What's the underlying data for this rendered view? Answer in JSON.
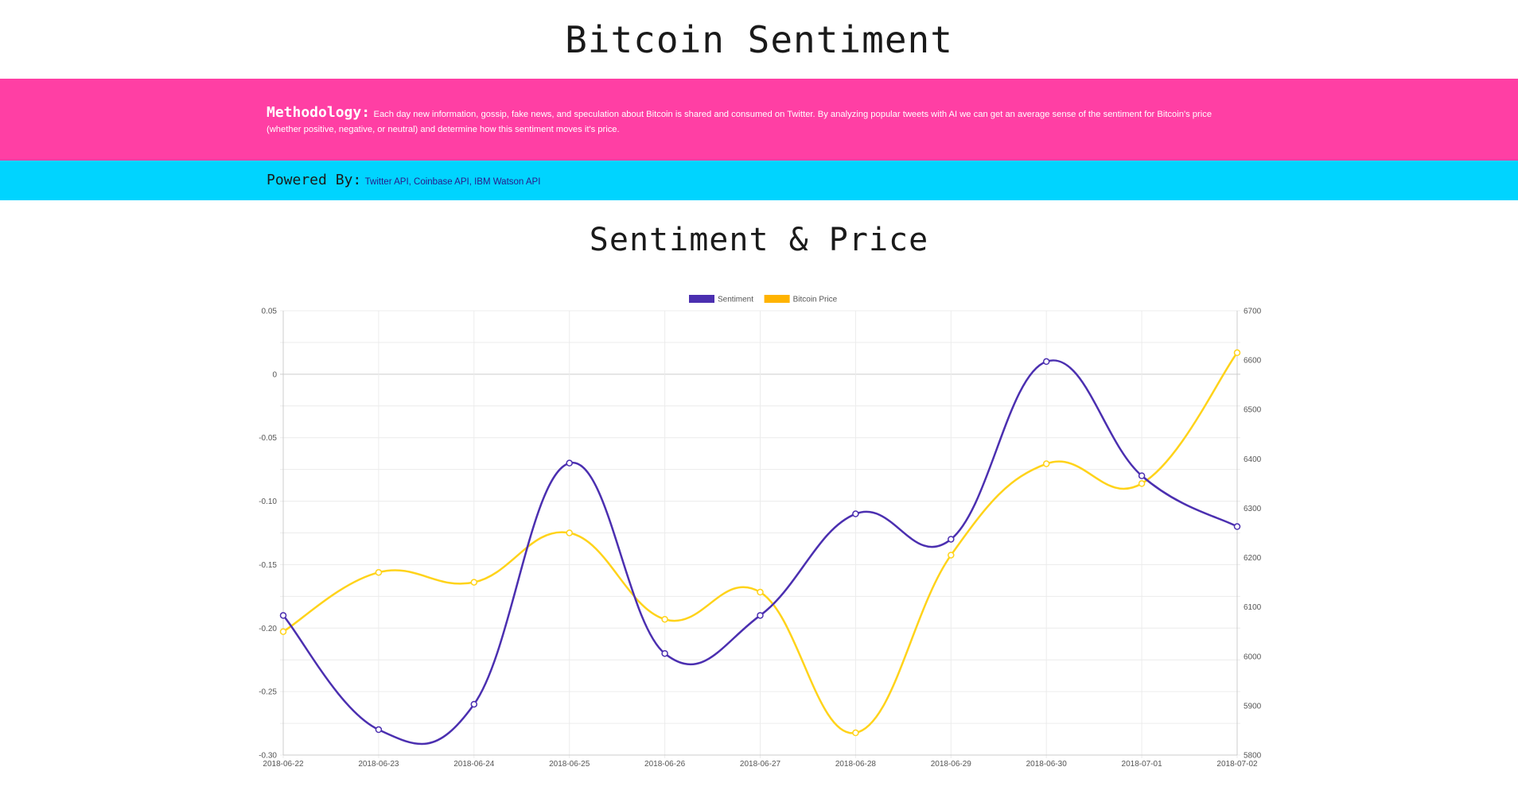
{
  "page": {
    "title": "Bitcoin Sentiment"
  },
  "methodology": {
    "label": "Methodology:",
    "text": "Each day new information, gossip, fake news, and speculation about Bitcoin is shared and consumed on Twitter. By analyzing popular tweets with AI we can get an average sense of the sentiment for Bitcoin's price (whether positive, negative, or neutral) and determine how this sentiment moves it's price."
  },
  "powered_by": {
    "label": "Powered By:",
    "text": "Twitter API, Coinbase API, IBM Watson API"
  },
  "colors": {
    "header_pink": "#ff3fa4",
    "header_cyan": "#00d4ff",
    "sentiment": "#4b2fb0",
    "price": "#ffd31a",
    "price_legend": "#ffb300"
  },
  "chart_data": {
    "type": "line",
    "title": "Sentiment & Price",
    "x": [
      "2018-06-22",
      "2018-06-23",
      "2018-06-24",
      "2018-06-25",
      "2018-06-26",
      "2018-06-27",
      "2018-06-28",
      "2018-06-29",
      "2018-06-30",
      "2018-07-01",
      "2018-07-02"
    ],
    "series": [
      {
        "name": "Sentiment",
        "axis": "left",
        "values": [
          -0.19,
          -0.28,
          -0.26,
          -0.07,
          -0.22,
          -0.19,
          -0.11,
          -0.13,
          0.01,
          -0.08,
          -0.12
        ]
      },
      {
        "name": "Bitcoin Price",
        "axis": "right",
        "values": [
          6050,
          6170,
          6150,
          6250,
          6075,
          6130,
          5845,
          6205,
          6390,
          6350,
          6615
        ]
      }
    ],
    "y_left": {
      "ylim": [
        -0.3,
        0.05
      ],
      "ticks": [
        "0.05",
        "0",
        "-0.05",
        "-0.10",
        "-0.15",
        "-0.20",
        "-0.25",
        "-0.30"
      ]
    },
    "y_right": {
      "ylim": [
        5800,
        6700
      ],
      "ticks": [
        "6700",
        "6600",
        "6500",
        "6400",
        "6300",
        "6200",
        "6100",
        "6000",
        "5900",
        "5800"
      ]
    },
    "grid": true,
    "legend_position": "top-center"
  }
}
